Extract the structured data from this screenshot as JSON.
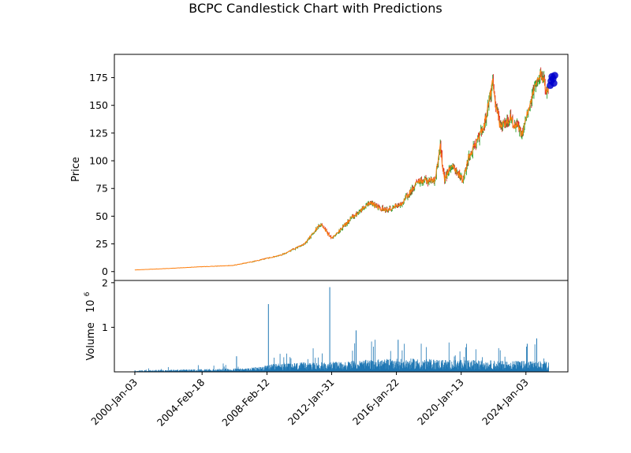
{
  "chart_data": [
    {
      "type": "candlestick",
      "title": "BCPC Candlestick Chart with Predictions",
      "ylabel": "Price",
      "ylim": [
        -8,
        196
      ],
      "y_ticks": [
        0,
        25,
        50,
        75,
        100,
        125,
        150,
        175
      ],
      "x_ticks": [
        "2000-Jan-03",
        "2004-Feb-18",
        "2008-Feb-12",
        "2012-Jan-31",
        "2016-Jan-22",
        "2020-Jan-13",
        "2024-Jan-03"
      ],
      "x_range": [
        "1998-10-01",
        "2026-08-01"
      ],
      "price_anchors": [
        {
          "date": "2000-01-03",
          "close": 1.5
        },
        {
          "date": "2002-01-01",
          "close": 2.8
        },
        {
          "date": "2004-01-01",
          "close": 4.3
        },
        {
          "date": "2006-01-01",
          "close": 5.5
        },
        {
          "date": "2007-06-01",
          "close": 9.5
        },
        {
          "date": "2009-01-01",
          "close": 15
        },
        {
          "date": "2010-06-01",
          "close": 25
        },
        {
          "date": "2011-06-01",
          "close": 43
        },
        {
          "date": "2012-02-01",
          "close": 30
        },
        {
          "date": "2013-06-01",
          "close": 50
        },
        {
          "date": "2014-06-01",
          "close": 62
        },
        {
          "date": "2015-06-01",
          "close": 55
        },
        {
          "date": "2016-06-01",
          "close": 62
        },
        {
          "date": "2017-06-01",
          "close": 82
        },
        {
          "date": "2018-06-01",
          "close": 82
        },
        {
          "date": "2018-10-01",
          "close": 112
        },
        {
          "date": "2019-01-01",
          "close": 82
        },
        {
          "date": "2019-06-01",
          "close": 98
        },
        {
          "date": "2020-03-01",
          "close": 82
        },
        {
          "date": "2020-06-01",
          "close": 100
        },
        {
          "date": "2021-06-01",
          "close": 130
        },
        {
          "date": "2021-12-15",
          "close": 170
        },
        {
          "date": "2022-06-01",
          "close": 130
        },
        {
          "date": "2023-01-01",
          "close": 138
        },
        {
          "date": "2023-10-01",
          "close": 125
        },
        {
          "date": "2024-06-01",
          "close": 160
        },
        {
          "date": "2024-12-01",
          "close": 180
        },
        {
          "date": "2025-06-01",
          "close": 160
        }
      ],
      "predictions": [
        {
          "date": "2025-07-01",
          "value": 168
        },
        {
          "date": "2025-07-20",
          "value": 172
        },
        {
          "date": "2025-08-10",
          "value": 176
        },
        {
          "date": "2025-09-01",
          "value": 174
        },
        {
          "date": "2025-09-20",
          "value": 170
        },
        {
          "date": "2025-10-10",
          "value": 177
        }
      ],
      "colors": {
        "up": "#2ca02c",
        "down": "#d62728",
        "line": "#ff7f0e",
        "prediction": "#0000cd"
      }
    },
    {
      "type": "bar",
      "ylabel": "Volume",
      "ylabel_exponent": "10",
      "ylabel_exponent_power": "6",
      "ylim": [
        0,
        2.05
      ],
      "y_ticks": [
        1,
        2
      ],
      "color": "#1f77b4",
      "baseline_anchors": [
        {
          "date": "2000-01-03",
          "value": 0.02
        },
        {
          "date": "2007-01-01",
          "value": 0.05
        },
        {
          "date": "2009-01-01",
          "value": 0.12
        },
        {
          "date": "2012-01-01",
          "value": 0.13
        },
        {
          "date": "2016-01-01",
          "value": 0.18
        },
        {
          "date": "2020-01-01",
          "value": 0.16
        },
        {
          "date": "2025-06-01",
          "value": 0.14
        }
      ],
      "spikes": [
        {
          "date": "2008-03-15",
          "value": 1.52
        },
        {
          "date": "2011-12-20",
          "value": 1.9
        },
        {
          "date": "2006-04-01",
          "value": 0.35
        },
        {
          "date": "2013-08-01",
          "value": 0.93
        },
        {
          "date": "2016-03-01",
          "value": 0.72
        },
        {
          "date": "2024-09-01",
          "value": 0.75
        },
        {
          "date": "2024-02-01",
          "value": 0.63
        }
      ]
    }
  ]
}
